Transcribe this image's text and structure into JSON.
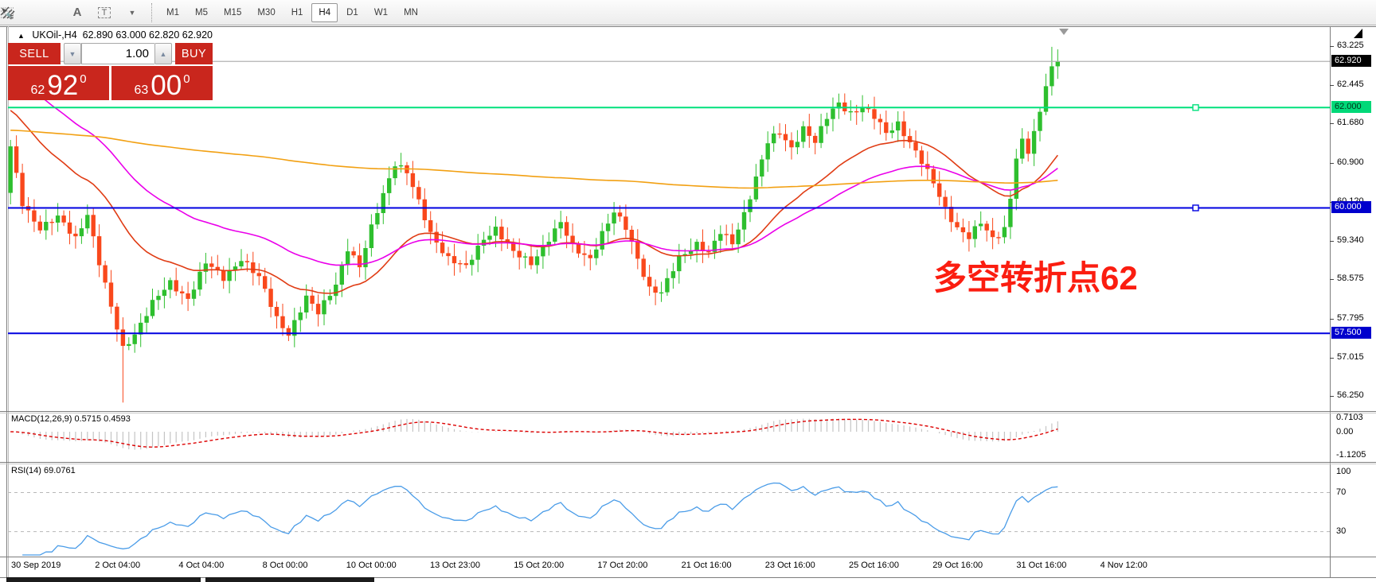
{
  "toolbar": {
    "icons": [
      {
        "name": "equidistant-channel-icon",
        "letter": "E"
      },
      {
        "name": "fibo-grid-icon",
        "letter": "F"
      },
      {
        "name": "text-label-icon",
        "letter": "A"
      },
      {
        "name": "text-box-icon",
        "letter": "T"
      },
      {
        "name": "arrow-tools-icon",
        "letter": ""
      }
    ],
    "timeframes": [
      {
        "label": "M1",
        "active": false
      },
      {
        "label": "M5",
        "active": false
      },
      {
        "label": "M15",
        "active": false
      },
      {
        "label": "M30",
        "active": false
      },
      {
        "label": "H1",
        "active": false
      },
      {
        "label": "H4",
        "active": true
      },
      {
        "label": "D1",
        "active": false
      },
      {
        "label": "W1",
        "active": false
      },
      {
        "label": "MN",
        "active": false
      }
    ]
  },
  "chart": {
    "title": "UKOil-,H4",
    "quotes": "62.890 63.000 62.820 62.920"
  },
  "trade": {
    "sell_label": "SELL",
    "buy_label": "BUY",
    "volume": "1.00",
    "sell_price": {
      "small": "62",
      "big": "92",
      "sup": "0"
    },
    "buy_price": {
      "small": "63",
      "big": "00",
      "sup": "0"
    },
    "panel_color": "#c9261d"
  },
  "annotation": {
    "text": "多空转折点62",
    "color": "#fb1d10"
  },
  "macd": {
    "label": "MACD(12,26,9) 0.5715 0.4593",
    "axis_labels": [
      "0.7103",
      "0.00",
      "-1.1205"
    ]
  },
  "rsi": {
    "label": "RSI(14) 69.0761",
    "axis_labels": [
      "100",
      "70",
      "30"
    ]
  },
  "chart_data": {
    "type": "candlestick",
    "symbol": "UKOil-",
    "timeframe": "H4",
    "quote": {
      "open": 62.89,
      "high": 63.0,
      "low": 62.82,
      "close": 62.92
    },
    "up_color": "#2ebf2e",
    "down_color": "#f9481c",
    "y_ticks": [
      63.225,
      62.445,
      61.68,
      60.9,
      60.12,
      59.34,
      58.575,
      57.795,
      57.015,
      56.25
    ],
    "x_labels": [
      "30 Sep 2019",
      "2 Oct 04:00",
      "4 Oct 04:00",
      "8 Oct 00:00",
      "10 Oct 00:00",
      "13 Oct 23:00",
      "15 Oct 20:00",
      "17 Oct 20:00",
      "21 Oct 16:00",
      "23 Oct 16:00",
      "25 Oct 16:00",
      "29 Oct 16:00",
      "31 Oct 16:00",
      "4 Nov 12:00"
    ],
    "hlines": [
      {
        "price": 62.92,
        "color": "#b4b4b4",
        "width": 1,
        "badge_bg": "#000000",
        "badge_fg": "#ffffff",
        "label": "62.920",
        "marker": false
      },
      {
        "price": 62.0,
        "color": "#00e07c",
        "width": 2,
        "badge_bg": "#00d878",
        "badge_fg": "#00331a",
        "label": "62.000",
        "marker": true
      },
      {
        "price": 60.0,
        "color": "#0000e0",
        "width": 2,
        "badge_bg": "#0000cd",
        "badge_fg": "#ffffff",
        "label": "60.000",
        "marker": true
      },
      {
        "price": 57.5,
        "color": "#0000e0",
        "width": 2,
        "badge_bg": "#0000cd",
        "badge_fg": "#ffffff",
        "label": "57.500",
        "marker": false
      }
    ],
    "num_candles": 178,
    "price_waypoints": [
      [
        0,
        61.2
      ],
      [
        2,
        60.1
      ],
      [
        5,
        59.6
      ],
      [
        8,
        59.8
      ],
      [
        11,
        59.4
      ],
      [
        13,
        59.9
      ],
      [
        15,
        58.9
      ],
      [
        17,
        58.0
      ],
      [
        19,
        57.2
      ],
      [
        21,
        57.5
      ],
      [
        24,
        58.1
      ],
      [
        27,
        58.5
      ],
      [
        30,
        58.2
      ],
      [
        33,
        58.9
      ],
      [
        36,
        58.6
      ],
      [
        39,
        59.0
      ],
      [
        42,
        58.6
      ],
      [
        45,
        57.8
      ],
      [
        47,
        57.5
      ],
      [
        50,
        58.2
      ],
      [
        52,
        57.9
      ],
      [
        55,
        58.5
      ],
      [
        57,
        59.2
      ],
      [
        59,
        58.8
      ],
      [
        61,
        59.6
      ],
      [
        63,
        60.3
      ],
      [
        65,
        60.9
      ],
      [
        67,
        60.7
      ],
      [
        69,
        60.1
      ],
      [
        71,
        59.5
      ],
      [
        74,
        59.0
      ],
      [
        77,
        58.8
      ],
      [
        80,
        59.4
      ],
      [
        82,
        59.6
      ],
      [
        85,
        59.1
      ],
      [
        88,
        58.9
      ],
      [
        91,
        59.4
      ],
      [
        93,
        59.7
      ],
      [
        95,
        59.2
      ],
      [
        98,
        59.0
      ],
      [
        100,
        59.5
      ],
      [
        102,
        59.9
      ],
      [
        104,
        59.6
      ],
      [
        106,
        59.0
      ],
      [
        108,
        58.4
      ],
      [
        110,
        58.3
      ],
      [
        113,
        59.0
      ],
      [
        116,
        59.3
      ],
      [
        118,
        59.1
      ],
      [
        120,
        59.5
      ],
      [
        122,
        59.3
      ],
      [
        124,
        59.9
      ],
      [
        126,
        60.6
      ],
      [
        128,
        61.3
      ],
      [
        130,
        61.5
      ],
      [
        132,
        61.2
      ],
      [
        134,
        61.6
      ],
      [
        136,
        61.3
      ],
      [
        138,
        61.8
      ],
      [
        140,
        62.1
      ],
      [
        142,
        61.9
      ],
      [
        144,
        62.0
      ],
      [
        146,
        61.8
      ],
      [
        148,
        61.5
      ],
      [
        150,
        61.7
      ],
      [
        152,
        61.3
      ],
      [
        154,
        60.9
      ],
      [
        156,
        60.5
      ],
      [
        158,
        60.0
      ],
      [
        160,
        59.6
      ],
      [
        162,
        59.4
      ],
      [
        164,
        59.7
      ],
      [
        166,
        59.4
      ],
      [
        168,
        59.6
      ],
      [
        169,
        60.2
      ],
      [
        170,
        61.0
      ],
      [
        171,
        61.3
      ],
      [
        172,
        61.1
      ],
      [
        173,
        61.5
      ],
      [
        174,
        61.9
      ],
      [
        175,
        62.5
      ],
      [
        176,
        62.8
      ],
      [
        177,
        62.92
      ]
    ],
    "moving_averages": [
      {
        "name": "fast-ma",
        "color": "#e03c14",
        "period": 26,
        "seed": 62.0
      },
      {
        "name": "medium-ma",
        "color": "#ea00ea",
        "period": 50,
        "seed": 62.8
      },
      {
        "name": "slow-ma",
        "color": "#f2a012",
        "period": 400,
        "seed": 61.55
      }
    ],
    "indicators": [
      {
        "name": "MACD",
        "params": "12,26,9",
        "values": [
          0.5715,
          0.4593
        ],
        "axis": [
          0.7103,
          0.0,
          -1.1205
        ],
        "histogram_color": "#c4c4c4",
        "signal_color": "#dd0000"
      },
      {
        "name": "RSI",
        "params": "14",
        "value": 69.0761,
        "axis": [
          100,
          70,
          30
        ],
        "levels": [
          70,
          30
        ],
        "line_color": "#4a9ce8"
      }
    ]
  }
}
